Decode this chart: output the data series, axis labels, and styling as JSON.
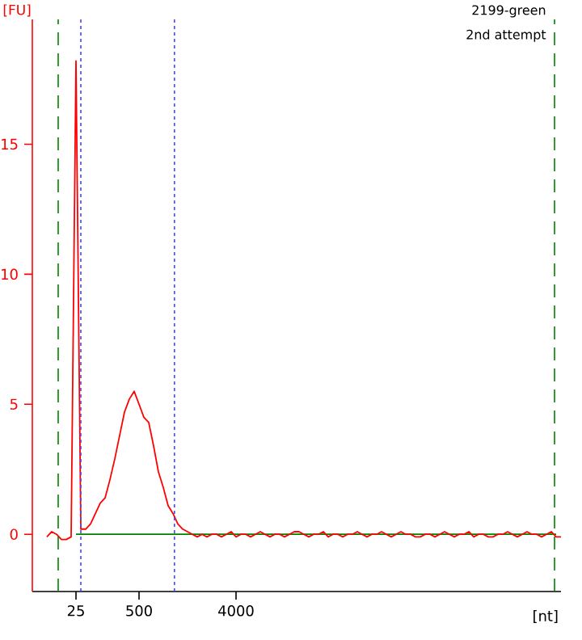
{
  "chart_data": {
    "type": "line",
    "xlabel": "[nt]",
    "ylabel": "[FU]",
    "annotations": [
      "2199-green",
      "2nd attempt"
    ],
    "categories": [
      null,
      null,
      null,
      null,
      null,
      null,
      null,
      null,
      null,
      "25",
      null,
      null,
      null,
      null,
      null,
      null,
      null,
      null,
      null,
      null,
      null,
      null,
      "500",
      null,
      null,
      null,
      null,
      null,
      null,
      null,
      null,
      null,
      null,
      null,
      null,
      null,
      null,
      null,
      null,
      null,
      null,
      null,
      "4000",
      null,
      null,
      null,
      null,
      null,
      null,
      null,
      null,
      null,
      null,
      null,
      null,
      null,
      null,
      null,
      null,
      null,
      null,
      null,
      null,
      null,
      null,
      null,
      null,
      null,
      null,
      null,
      null,
      null,
      null,
      null,
      null,
      null,
      null,
      null,
      null,
      null,
      null,
      null,
      null,
      null,
      null,
      null,
      null,
      null,
      null,
      null,
      null,
      null,
      null,
      null,
      null,
      null,
      null,
      null,
      null,
      null,
      null,
      null,
      null,
      null,
      null,
      null,
      null,
      null,
      null,
      null
    ],
    "ylim": [
      -2.2,
      19.8
    ],
    "yticks": [
      0,
      5,
      10,
      15
    ],
    "series": [
      {
        "color": "#008000",
        "values": [
          null,
          null,
          null,
          null,
          null,
          null,
          null,
          null,
          null,
          0,
          0,
          0,
          0,
          0,
          0,
          0,
          0,
          0,
          0,
          0,
          0,
          0,
          0,
          0,
          0,
          0,
          0,
          0,
          0,
          0,
          0,
          0,
          0,
          0,
          0,
          0,
          0,
          0,
          0,
          0,
          0,
          0,
          0,
          0,
          0,
          0,
          0,
          0,
          0,
          0,
          0,
          0,
          0,
          0,
          0,
          0,
          0,
          0,
          0,
          0,
          0,
          0,
          0,
          0,
          0,
          0,
          0,
          0,
          0,
          0,
          0,
          0,
          0,
          0,
          0,
          0,
          0,
          0,
          0,
          0,
          0,
          0,
          0,
          0,
          0,
          0,
          0,
          0,
          0,
          0,
          0,
          0,
          0,
          0,
          0,
          0,
          0,
          0,
          0,
          0,
          0,
          0,
          0,
          0,
          0,
          0,
          0,
          0,
          0,
          null
        ]
      },
      {
        "color": "#ff0000",
        "values": [
          null,
          null,
          null,
          -0.1,
          0.1,
          0,
          -0.2,
          -0.2,
          -0.1,
          18.2,
          0.2,
          0.2,
          0.4,
          0.8,
          1.2,
          1.4,
          2.1,
          2.9,
          3.8,
          4.7,
          5.2,
          5.5,
          5.0,
          4.5,
          4.3,
          3.4,
          2.4,
          1.8,
          1.1,
          0.8,
          0.4,
          0.2,
          0.1,
          0,
          -0.1,
          0,
          -0.1,
          0,
          0,
          -0.1,
          0,
          0.1,
          -0.1,
          0,
          0,
          -0.1,
          0,
          0.1,
          0,
          -0.1,
          0,
          0,
          -0.1,
          0,
          0.1,
          0.1,
          0,
          -0.1,
          0,
          0,
          0.1,
          -0.1,
          0,
          0,
          -0.1,
          0,
          0,
          0.1,
          0,
          -0.1,
          0,
          0,
          0.1,
          0,
          -0.1,
          0,
          0.1,
          0,
          0,
          -0.1,
          -0.1,
          0,
          0,
          -0.1,
          0,
          0.1,
          0,
          -0.1,
          0,
          0,
          0.1,
          -0.1,
          0,
          0,
          -0.1,
          -0.1,
          0,
          0,
          0.1,
          0,
          -0.1,
          0,
          0.1,
          0,
          0,
          -0.1,
          0,
          0.1,
          -0.1,
          -0.1
        ]
      }
    ]
  }
}
